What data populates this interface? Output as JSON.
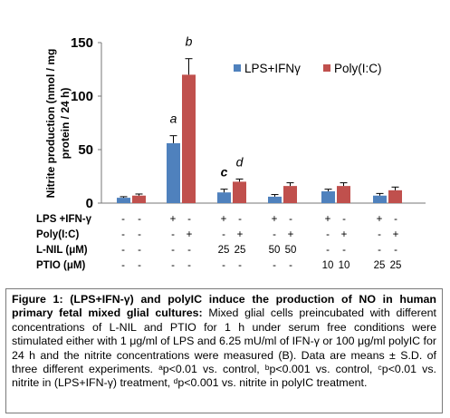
{
  "chart_data": {
    "type": "bar",
    "ylabel": "Nitrite production (nmol / mg protein / 24 h)",
    "ylim": [
      0,
      150
    ],
    "yticks": [
      "0",
      "50",
      "100",
      "150"
    ],
    "grid": false,
    "legend_position": "top-right",
    "series": [
      {
        "name": "LPS+IFNγ",
        "color": "#4f81bd",
        "values": [
          5,
          56,
          10,
          6,
          11,
          7
        ],
        "errors": [
          1,
          7,
          3,
          2,
          2,
          2
        ],
        "labels": [
          "",
          "a",
          "c",
          "",
          "",
          ""
        ]
      },
      {
        "name": "Poly(I:C)",
        "color": "#c0504d",
        "values": [
          7,
          120,
          20,
          16,
          16,
          12
        ],
        "errors": [
          1.5,
          15,
          2.5,
          3,
          3,
          3
        ],
        "labels": [
          "",
          "b",
          "d",
          "",
          "",
          ""
        ]
      }
    ],
    "treatment_rows": [
      {
        "label": "LPS +IFN-γ",
        "values": [
          "-",
          "-",
          "+",
          "-",
          "+",
          "-",
          "+",
          "-",
          "+",
          "-",
          "+",
          "-"
        ]
      },
      {
        "label": "Poly(I:C)",
        "values": [
          "-",
          "-",
          "-",
          "+",
          "-",
          "+",
          "-",
          "+",
          "-",
          "+",
          "-",
          "+"
        ]
      },
      {
        "label": "L-NIL (μM)",
        "values": [
          "-",
          "-",
          "-",
          "-",
          "25",
          "25",
          "50",
          "50",
          "-",
          "-",
          "-",
          "-"
        ]
      },
      {
        "label": "PTIO (μM)",
        "values": [
          "-",
          "-",
          "-",
          "-",
          "-",
          "-",
          "-",
          "-",
          "10",
          "10",
          "25",
          "25"
        ]
      }
    ]
  },
  "caption": {
    "title": "Figure 1: (LPS+IFN-γ) and polyIC induce the production of NO in human primary fetal mixed glial cultures:",
    "body": " Mixed glial cells preincubated with different concentrations of L-NIL and PTIO for 1 h under serum free conditions were stimulated either with 1 μg/ml of LPS and 6.25 mU/ml of IFN-γ or 100 μg/ml polyIC for 24 h and the nitrite concentrations were measured (B). Data are means ± S.D. of three different experiments. ᵃp<0.01 vs. control, ᵇp<0.001 vs. control, ᶜp<0.01 vs. nitrite in (LPS+IFN-γ) treatment, ᵈp<0.001 vs. nitrite in polyIC treatment."
  }
}
